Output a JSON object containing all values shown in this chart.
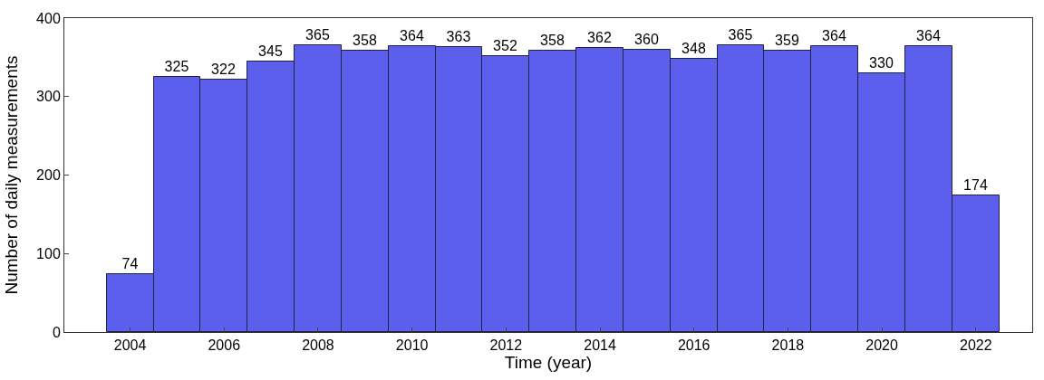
{
  "chart_data": {
    "type": "bar",
    "xlabel": "Time (year)",
    "ylabel": "Number of daily measurements",
    "x": [
      2004,
      2005,
      2006,
      2007,
      2008,
      2009,
      2010,
      2011,
      2012,
      2013,
      2014,
      2015,
      2016,
      2017,
      2018,
      2019,
      2020,
      2021,
      2022
    ],
    "values": [
      74,
      325,
      322,
      345,
      365,
      358,
      364,
      363,
      352,
      358,
      362,
      360,
      348,
      365,
      359,
      364,
      330,
      364,
      174
    ],
    "color": "#5b5fec",
    "xlim": [
      2002.6,
      2023.2
    ],
    "xticks": [
      2004,
      2006,
      2008,
      2010,
      2012,
      2014,
      2016,
      2018,
      2020,
      2022
    ],
    "ylim": [
      0,
      400
    ],
    "yticks": [
      0,
      100,
      200,
      300,
      400
    ],
    "data_labels": true
  }
}
